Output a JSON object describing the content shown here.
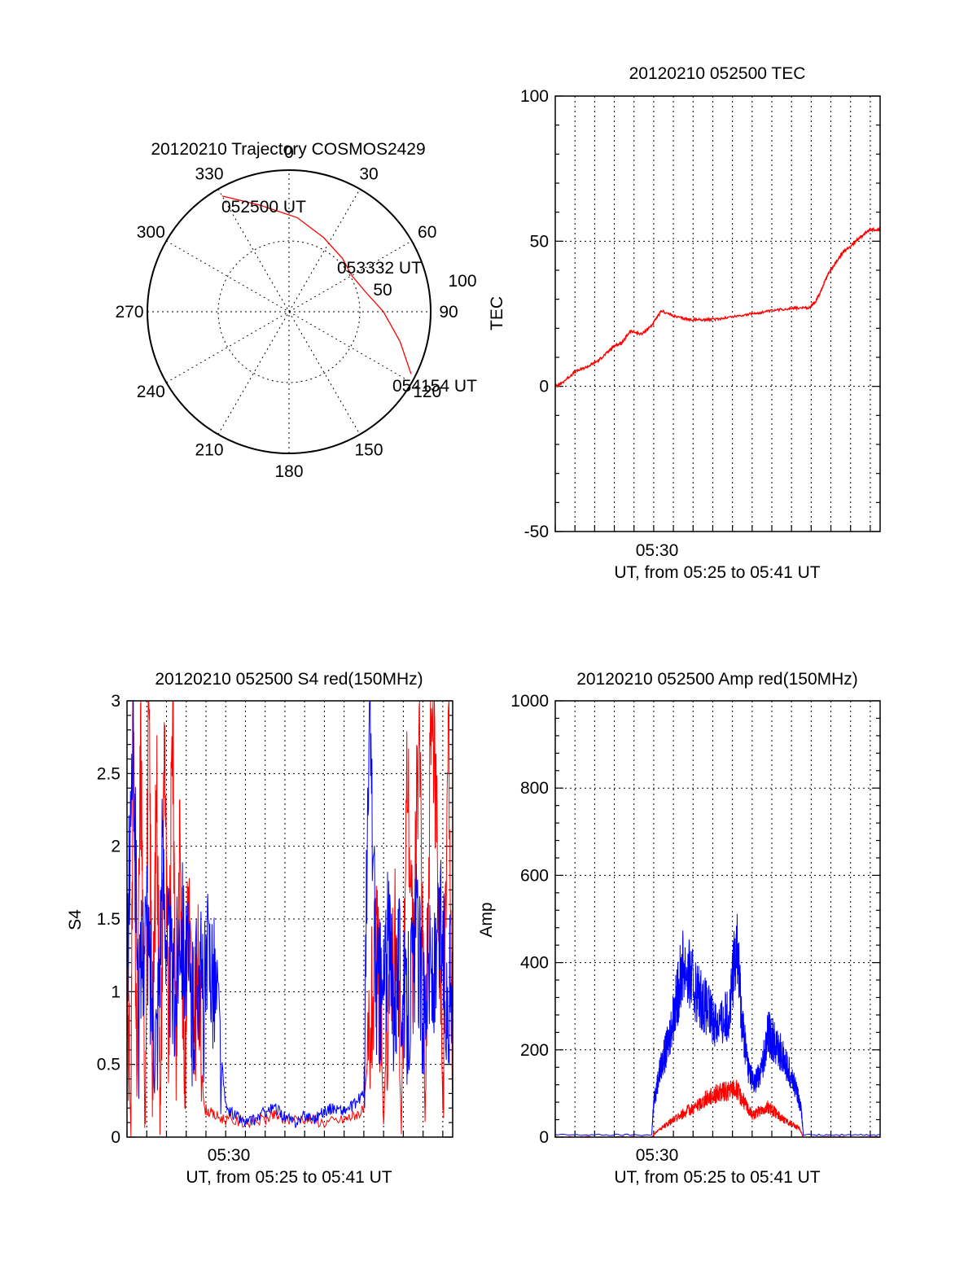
{
  "colors": {
    "red": "#ff0000",
    "blue": "#0000ff",
    "axis": "#000000"
  },
  "chart_data": [
    {
      "type": "polar",
      "title": "20120210 Trajectory COSMOS2429",
      "azimuth_labels": [
        "0",
        "30",
        "60",
        "90",
        "120",
        "150",
        "180",
        "210",
        "240",
        "270",
        "300",
        "330"
      ],
      "radial_labels": [
        "50",
        "100"
      ],
      "annotations": [
        "052500 UT",
        "053332 UT",
        "054154 UT"
      ],
      "trajectory": [
        {
          "az": 330,
          "el": 5
        },
        {
          "az": 345,
          "el": 20
        },
        {
          "az": 5,
          "el": 30
        },
        {
          "az": 25,
          "el": 38
        },
        {
          "az": 45,
          "el": 42
        },
        {
          "az": 60,
          "el": 44
        },
        {
          "az": 75,
          "el": 40
        },
        {
          "az": 90,
          "el": 30
        },
        {
          "az": 105,
          "el": 17
        },
        {
          "az": 117,
          "el": 3
        }
      ]
    },
    {
      "type": "line",
      "title": "20120210 052500 TEC",
      "ylabel": "TEC",
      "xlabel": "UT, from 05:25 to 05:41 UT",
      "xtick_label": "05:30",
      "yticks": [
        "-50",
        "0",
        "50",
        "100"
      ],
      "ylim": [
        -50,
        100
      ],
      "xlim_minutes": [
        0,
        16.5
      ],
      "series": [
        {
          "color": "red",
          "x": [
            0,
            0.3,
            1,
            1.7,
            2.2,
            2.7,
            3,
            3.4,
            3.8,
            4.4,
            4.9,
            5.4,
            6.1,
            6.8,
            7.5,
            8,
            9,
            10,
            11,
            12,
            12.9,
            13.2,
            13.5,
            13.8,
            14.1,
            14.6,
            15.1,
            15.6,
            16,
            16.5
          ],
          "y": [
            0,
            1,
            5,
            7,
            9,
            12,
            14,
            15,
            19,
            18,
            21,
            26,
            24,
            23,
            23,
            23,
            24,
            25,
            26,
            27,
            27,
            29,
            33,
            38,
            41,
            46,
            49,
            52,
            54,
            54
          ]
        }
      ]
    },
    {
      "type": "line",
      "title": "20120210 052500 S4 red(150MHz)",
      "ylabel": "S4",
      "xlabel": "UT, from 05:25 to 05:41 UT",
      "xtick_label": "05:30",
      "yticks": [
        "0",
        "0.5",
        "1",
        "1.5",
        "2",
        "2.5",
        "3"
      ],
      "ylim": [
        0,
        3
      ],
      "xlim_minutes": [
        0,
        16.5
      ],
      "series": [
        {
          "color": "red",
          "x": [
            0,
            0.2,
            0.3,
            0.5,
            0.7,
            0.9,
            1.1,
            1.3,
            1.5,
            1.7,
            1.9,
            2.1,
            2.3,
            2.5,
            2.7,
            2.9,
            3.1,
            3.3,
            3.6,
            3.9,
            4.4,
            5,
            6,
            7,
            7.5,
            8,
            9,
            10,
            11,
            11.5,
            12,
            12.4,
            12.7,
            13,
            13.3,
            13.6,
            13.9,
            14.2,
            14.5,
            14.8,
            15.1,
            15.4,
            15.7,
            16,
            16.3,
            16.5
          ],
          "y": [
            1.2,
            0,
            3,
            0.3,
            2.8,
            0.1,
            3,
            0.5,
            2.5,
            0.2,
            2.9,
            0.4,
            3,
            0.6,
            2.2,
            0.3,
            1.8,
            0.7,
            1.1,
            0.2,
            0.15,
            0.12,
            0.1,
            0.12,
            0.15,
            0.12,
            0.13,
            0.1,
            0.12,
            0.15,
            0.18,
            0.9,
            1.3,
            0.1,
            1.2,
            1.4,
            0.05,
            2.6,
            1.1,
            3,
            0.1,
            3,
            2.3,
            0.2,
            3,
            0.05
          ]
        },
        {
          "color": "blue",
          "x": [
            0,
            0.3,
            0.6,
            0.9,
            1.2,
            1.5,
            1.8,
            2.1,
            2.4,
            2.7,
            3,
            3.3,
            3.6,
            3.9,
            4.2,
            4.5,
            5,
            5.5,
            6,
            6.5,
            7,
            7.5,
            8,
            8.5,
            9,
            9.5,
            10,
            10.5,
            11,
            11.5,
            12,
            12.3,
            12.6,
            12.9,
            13.2,
            13.5,
            13.8,
            14.1,
            14.4,
            14.7,
            15,
            15.3,
            15.6,
            15.9,
            16.2,
            16.5
          ],
          "y": [
            1,
            2.9,
            0.8,
            1.5,
            1.1,
            0.7,
            1.9,
            1.3,
            0.9,
            1.6,
            1.2,
            0.8,
            1.2,
            0.9,
            1.3,
            1.0,
            0.2,
            0.15,
            0.1,
            0.12,
            0.18,
            0.2,
            0.14,
            0.1,
            0.15,
            0.13,
            0.18,
            0.2,
            0.18,
            0.22,
            0.3,
            3,
            1.1,
            0.9,
            1.3,
            1.0,
            1.2,
            0.8,
            1.1,
            1.4,
            0.9,
            1.2,
            1.0,
            1.5,
            0.9,
            1.1
          ]
        }
      ]
    },
    {
      "type": "area",
      "title": "20120210 052500 Amp red(150MHz)",
      "ylabel": "Amp",
      "xlabel": "UT, from 05:25 to 05:41 UT",
      "xtick_label": "05:30",
      "yticks": [
        "0",
        "200",
        "400",
        "600",
        "800",
        "1000"
      ],
      "ylim": [
        0,
        1000
      ],
      "xlim_minutes": [
        0,
        16.5
      ],
      "series": [
        {
          "color": "blue",
          "x": [
            0,
            4.9,
            5.0,
            5.3,
            5.7,
            6.1,
            6.5,
            7,
            7.5,
            8,
            8.5,
            8.9,
            9.2,
            9.5,
            9.8,
            10.1,
            10.5,
            10.8,
            11.1,
            11.5,
            11.9,
            12.3,
            12.5,
            12.6,
            16.5
          ],
          "y": [
            5,
            5,
            80,
            150,
            210,
            300,
            400,
            350,
            310,
            270,
            260,
            300,
            460,
            260,
            160,
            120,
            160,
            240,
            220,
            190,
            150,
            100,
            60,
            5,
            5
          ]
        },
        {
          "color": "red",
          "x": [
            0,
            4.9,
            5.2,
            5.7,
            6.2,
            6.7,
            7.2,
            7.7,
            8.2,
            8.7,
            9.2,
            9.6,
            10,
            10.4,
            10.8,
            11.2,
            11.6,
            12,
            12.4,
            12.6,
            16.5
          ],
          "y": [
            0,
            0,
            15,
            30,
            45,
            60,
            70,
            90,
            100,
            105,
            110,
            80,
            50,
            60,
            70,
            55,
            40,
            30,
            20,
            0,
            0
          ]
        }
      ]
    }
  ]
}
